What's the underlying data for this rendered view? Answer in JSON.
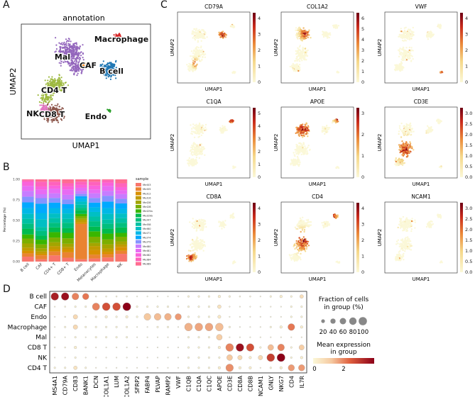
{
  "panels": {
    "A": "A",
    "B": "B",
    "C": "C",
    "D": "D"
  },
  "colors": {
    "bcell": "#1f77b4",
    "caf": "#ff7f0e",
    "cd4t": "#9fba42",
    "cd8t": "#8c564b",
    "endo": "#2ca02c",
    "macrophage": "#d62728",
    "mal": "#9467bd",
    "nk": "#e377c2",
    "feat_low": "#fbf8d8",
    "feat_high": "#6e0015"
  },
  "umap_a": {
    "title": "annotation",
    "xlabel": "UMAP1",
    "ylabel": "UMAP2",
    "labels": [
      "Macrophage",
      "Mal",
      "CAF",
      "B cell",
      "CD4 T",
      "NK",
      "CD8 T",
      "Endo"
    ]
  },
  "feature_plots": {
    "xlabel": "UMAP1",
    "ylabel": "UMAP2",
    "genes": [
      {
        "name": "CD79A",
        "ticks": [
          "0",
          "1",
          "2",
          "3",
          "4"
        ]
      },
      {
        "name": "COL1A2",
        "ticks": [
          "0",
          "1",
          "2",
          "3",
          "4",
          "5",
          "6"
        ]
      },
      {
        "name": "VWF",
        "ticks": [
          "0",
          "1",
          "2",
          "3",
          "4"
        ]
      },
      {
        "name": "C1QA",
        "ticks": [
          "0",
          "1",
          "2",
          "3",
          "4",
          "5"
        ]
      },
      {
        "name": "APOE",
        "ticks": [
          "0",
          "1",
          "2",
          "3"
        ]
      },
      {
        "name": "CD3E",
        "ticks": [
          "0.0",
          "0.5",
          "1.0",
          "1.5",
          "2.0",
          "2.5",
          "3.0"
        ]
      },
      {
        "name": "CD8A",
        "ticks": [
          "0",
          "1",
          "2",
          "3",
          "4"
        ]
      },
      {
        "name": "CD4",
        "ticks": [
          "0",
          "1",
          "2",
          "3",
          "4"
        ]
      },
      {
        "name": "NCAM1",
        "ticks": [
          "0.0",
          "0.5",
          "1.0",
          "1.5",
          "2.0",
          "2.5",
          "3.0"
        ]
      }
    ]
  },
  "chart_data": [
    {
      "type": "bar",
      "title": "",
      "xlabel": "",
      "ylabel": "Percentage (%)",
      "ylim": [
        0,
        1
      ],
      "yticks": [
        "0.00",
        "0.25",
        "0.50",
        "0.75",
        "1.00"
      ],
      "categories": [
        "B cell",
        "CAF",
        "CD4+ T",
        "CD8+ T",
        "Endo",
        "Melanocytes",
        "Macrophage",
        "NK"
      ],
      "legend_title": "sample",
      "series": [
        {
          "name": "Mel03",
          "color": "#f8766d",
          "values": [
            0.06,
            0.03,
            0.08,
            0.05,
            0.03,
            0.04,
            0.05,
            0.1
          ]
        },
        {
          "name": "Mel05",
          "color": "#ea8331",
          "values": [
            0.04,
            0.05,
            0.05,
            0.07,
            0.46,
            0.05,
            0.04,
            0.04
          ]
        },
        {
          "name": "Mel12",
          "color": "#d89000",
          "values": [
            0.03,
            0.02,
            0.03,
            0.04,
            0.02,
            0.06,
            0.03,
            0.05
          ]
        },
        {
          "name": "Mel16",
          "color": "#c09b00",
          "values": [
            0.04,
            0.03,
            0.04,
            0.03,
            0.03,
            0.05,
            0.04,
            0.03
          ]
        },
        {
          "name": "Mel28",
          "color": "#a3a500",
          "values": [
            0.05,
            0.04,
            0.05,
            0.04,
            0.02,
            0.04,
            0.05,
            0.04
          ]
        },
        {
          "name": "Mel28",
          "color": "#7cae00",
          "values": [
            0.06,
            0.05,
            0.06,
            0.07,
            0.03,
            0.08,
            0.06,
            0.06
          ]
        },
        {
          "name": "Mel29a",
          "color": "#39b600",
          "values": [
            0.05,
            0.06,
            0.07,
            0.07,
            0.03,
            0.07,
            0.07,
            0.05
          ]
        },
        {
          "name": "Mel29b",
          "color": "#00bb4e",
          "values": [
            0.07,
            0.05,
            0.06,
            0.06,
            0.05,
            0.06,
            0.06,
            0.07
          ]
        },
        {
          "name": "Mel47",
          "color": "#00bf7d",
          "values": [
            0.06,
            0.06,
            0.06,
            0.07,
            0.03,
            0.07,
            0.06,
            0.06
          ]
        },
        {
          "name": "Mel58",
          "color": "#00c1a3",
          "values": [
            0.06,
            0.05,
            0.06,
            0.05,
            0.04,
            0.06,
            0.05,
            0.06
          ]
        },
        {
          "name": "Mel60",
          "color": "#00bfc4",
          "values": [
            0.06,
            0.1,
            0.06,
            0.07,
            0.04,
            0.06,
            0.07,
            0.06
          ]
        },
        {
          "name": "Mel71",
          "color": "#00b8e7",
          "values": [
            0.07,
            0.08,
            0.07,
            0.06,
            0.04,
            0.06,
            0.07,
            0.06
          ]
        },
        {
          "name": "Mel74",
          "color": "#00a9ff",
          "values": [
            0.07,
            0.12,
            0.07,
            0.06,
            0.03,
            0.06,
            0.08,
            0.07
          ]
        },
        {
          "name": "Mel79",
          "color": "#8494ff",
          "values": [
            0.07,
            0.07,
            0.06,
            0.06,
            0.03,
            0.06,
            0.07,
            0.06
          ]
        },
        {
          "name": "Mel80",
          "color": "#c77cff",
          "values": [
            0.07,
            0.05,
            0.06,
            0.06,
            0.04,
            0.06,
            0.06,
            0.06
          ]
        },
        {
          "name": "Mel81",
          "color": "#e76bf3",
          "values": [
            0.06,
            0.06,
            0.06,
            0.07,
            0.04,
            0.05,
            0.06,
            0.05
          ]
        },
        {
          "name": "Mel82",
          "color": "#fa62db",
          "values": [
            0.05,
            0.04,
            0.04,
            0.04,
            0.04,
            0.05,
            0.04,
            0.04
          ]
        },
        {
          "name": "Mel84",
          "color": "#ff62bc",
          "values": [
            0.02,
            0.06,
            0.05,
            0.04,
            0.04,
            0.05,
            0.03,
            0.05
          ]
        },
        {
          "name": "Mel89",
          "color": "#ff6c91",
          "values": [
            0.01,
            0.03,
            0.03,
            0.05,
            0.03,
            0.03,
            0.01,
            0.05
          ]
        }
      ]
    },
    {
      "type": "scatter",
      "title": "",
      "rows": [
        "B cell",
        "CAF",
        "Endo",
        "Macrophage",
        "Mal",
        "CD8 T",
        "NK",
        "CD4 T"
      ],
      "genes": [
        "MS4A1",
        "CD79A",
        "CD83",
        "BANK1",
        "DCN",
        "COL1A1",
        "LUM",
        "COL1A2",
        "SFRP2",
        "FABP4",
        "PLVAP",
        "RAMP2",
        "VWF",
        "C1QB",
        "C1QA",
        "C1QC",
        "APOE",
        "CD3E",
        "CD8A",
        "CD8B",
        "NCAM1",
        "GNLY",
        "NKG7",
        "CD4",
        "IL7R"
      ],
      "fraction": [
        [
          0.85,
          0.85,
          0.7,
          0.6,
          0.03,
          0.03,
          0.03,
          0.03,
          0.01,
          0.01,
          0.01,
          0.01,
          0.01,
          0.05,
          0.05,
          0.05,
          0.1,
          0.05,
          0.03,
          0.03,
          0.02,
          0.05,
          0.1,
          0.05,
          0.2
        ],
        [
          0.02,
          0.03,
          0.05,
          0.05,
          0.8,
          0.9,
          0.9,
          0.95,
          0.05,
          0.05,
          0.05,
          0.05,
          0.03,
          0.05,
          0.05,
          0.05,
          0.2,
          0.02,
          0.02,
          0.02,
          0.02,
          0.02,
          0.02,
          0.05,
          0.05
        ],
        [
          0.02,
          0.03,
          0.3,
          0.02,
          0.05,
          0.1,
          0.05,
          0.1,
          0.05,
          0.7,
          0.7,
          0.7,
          0.6,
          0.05,
          0.05,
          0.05,
          0.15,
          0.02,
          0.02,
          0.02,
          0.02,
          0.02,
          0.02,
          0.05,
          0.05
        ],
        [
          0.02,
          0.05,
          0.3,
          0.05,
          0.05,
          0.05,
          0.05,
          0.05,
          0.02,
          0.02,
          0.05,
          0.05,
          0.02,
          0.9,
          0.9,
          0.9,
          0.9,
          0.05,
          0.02,
          0.02,
          0.02,
          0.05,
          0.1,
          0.7,
          0.1
        ],
        [
          0.02,
          0.02,
          0.05,
          0.02,
          0.05,
          0.05,
          0.05,
          0.05,
          0.02,
          0.02,
          0.02,
          0.02,
          0.02,
          0.05,
          0.05,
          0.05,
          0.5,
          0.02,
          0.02,
          0.02,
          0.02,
          0.02,
          0.02,
          0.02,
          0.02
        ],
        [
          0.03,
          0.03,
          0.1,
          0.03,
          0.02,
          0.02,
          0.02,
          0.02,
          0.01,
          0.01,
          0.01,
          0.01,
          0.01,
          0.05,
          0.05,
          0.05,
          0.1,
          0.9,
          0.9,
          0.85,
          0.05,
          0.5,
          0.7,
          0.05,
          0.4
        ],
        [
          0.02,
          0.02,
          0.05,
          0.02,
          0.02,
          0.02,
          0.02,
          0.02,
          0.01,
          0.01,
          0.01,
          0.01,
          0.01,
          0.05,
          0.05,
          0.05,
          0.05,
          0.5,
          0.3,
          0.1,
          0.3,
          0.9,
          0.95,
          0.05,
          0.1
        ],
        [
          0.05,
          0.05,
          0.2,
          0.05,
          0.02,
          0.02,
          0.02,
          0.02,
          0.01,
          0.01,
          0.01,
          0.01,
          0.01,
          0.05,
          0.05,
          0.05,
          0.1,
          0.85,
          0.1,
          0.1,
          0.02,
          0.05,
          0.1,
          0.6,
          0.6
        ]
      ],
      "expression": [
        [
          2.6,
          2.8,
          1.5,
          1.6,
          0.1,
          0.1,
          0.1,
          0.1,
          0.0,
          0.0,
          0.0,
          0.0,
          0.0,
          0.1,
          0.1,
          0.1,
          0.2,
          0.1,
          0.1,
          0.1,
          0.1,
          0.1,
          0.2,
          0.1,
          0.5
        ],
        [
          0.1,
          0.1,
          0.1,
          0.1,
          1.5,
          2.0,
          2.0,
          3.0,
          0.1,
          0.1,
          0.1,
          0.1,
          0.1,
          0.1,
          0.1,
          0.1,
          0.4,
          0.1,
          0.1,
          0.1,
          0.1,
          0.1,
          0.1,
          0.1,
          0.1
        ],
        [
          0.1,
          0.1,
          0.6,
          0.1,
          0.1,
          0.2,
          0.1,
          0.2,
          0.1,
          0.9,
          1.0,
          1.1,
          1.3,
          0.1,
          0.1,
          0.1,
          0.3,
          0.1,
          0.1,
          0.1,
          0.1,
          0.1,
          0.1,
          0.1,
          0.1
        ],
        [
          0.1,
          0.1,
          0.6,
          0.1,
          0.1,
          0.1,
          0.1,
          0.1,
          0.1,
          0.1,
          0.1,
          0.1,
          0.1,
          1.1,
          1.2,
          1.2,
          1.0,
          0.1,
          0.1,
          0.1,
          0.1,
          0.1,
          0.2,
          1.6,
          0.2
        ],
        [
          0.1,
          0.1,
          0.1,
          0.1,
          0.1,
          0.1,
          0.1,
          0.1,
          0.1,
          0.1,
          0.1,
          0.1,
          0.1,
          0.1,
          0.1,
          0.1,
          0.8,
          0.1,
          0.1,
          0.1,
          0.1,
          0.1,
          0.1,
          0.1,
          0.1
        ],
        [
          0.1,
          0.1,
          0.2,
          0.1,
          0.1,
          0.1,
          0.1,
          0.1,
          0.1,
          0.1,
          0.1,
          0.1,
          0.1,
          0.1,
          0.1,
          0.1,
          0.2,
          1.5,
          2.8,
          2.0,
          0.1,
          1.0,
          1.5,
          0.1,
          0.8
        ],
        [
          0.1,
          0.1,
          0.1,
          0.1,
          0.1,
          0.1,
          0.1,
          0.1,
          0.1,
          0.1,
          0.1,
          0.1,
          0.1,
          0.1,
          0.1,
          0.1,
          0.1,
          0.9,
          0.6,
          0.2,
          0.6,
          2.2,
          3.0,
          0.1,
          0.2
        ],
        [
          0.1,
          0.1,
          0.4,
          0.1,
          0.1,
          0.1,
          0.1,
          0.1,
          0.1,
          0.1,
          0.1,
          0.1,
          0.1,
          0.1,
          0.1,
          0.1,
          0.2,
          1.4,
          0.2,
          0.2,
          0.1,
          0.1,
          0.2,
          1.3,
          1.3
        ]
      ],
      "size_legend_title": "Fraction of cells\nin group (%)",
      "size_legend_labels": [
        "20",
        "40",
        "60",
        "80",
        "100"
      ],
      "color_legend_title": "Mean expression\nin group",
      "color_legend_ticks": [
        "0",
        "2"
      ]
    }
  ]
}
